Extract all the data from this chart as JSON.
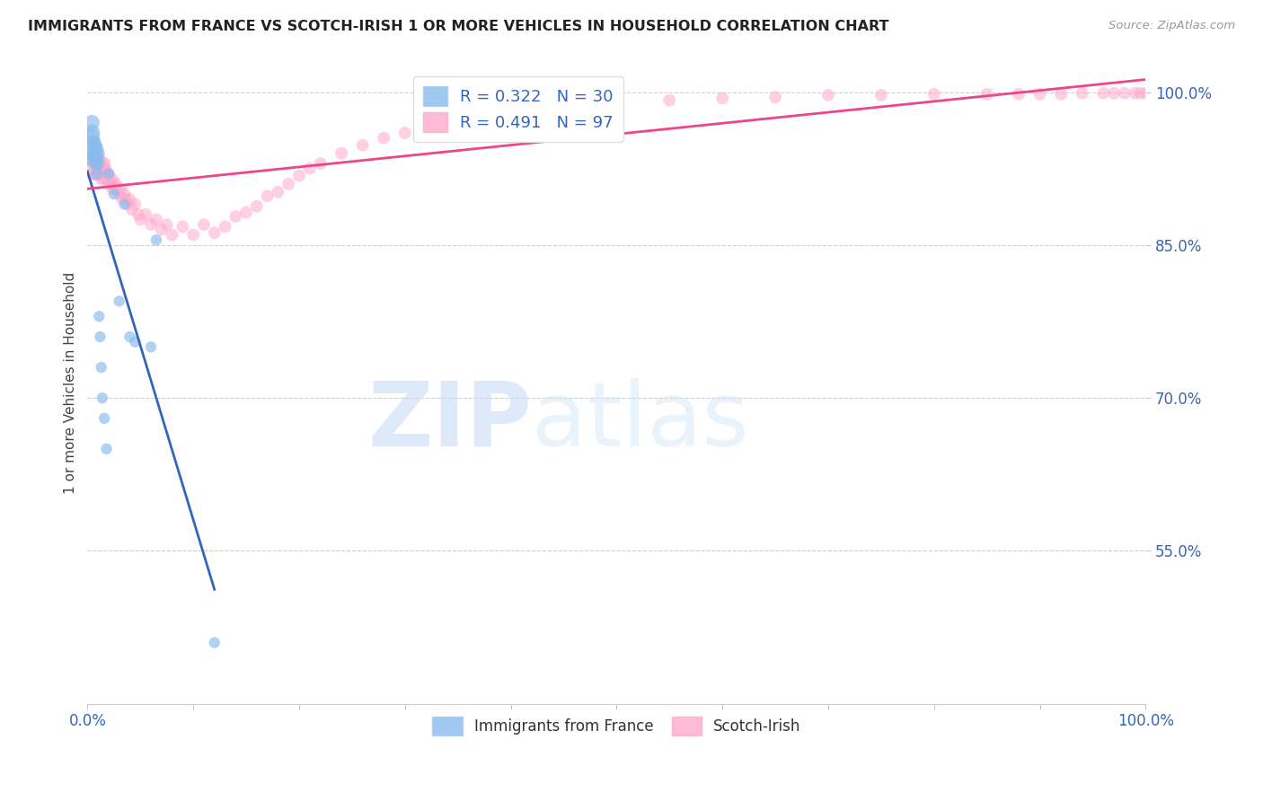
{
  "title": "IMMIGRANTS FROM FRANCE VS SCOTCH-IRISH 1 OR MORE VEHICLES IN HOUSEHOLD CORRELATION CHART",
  "source": "Source: ZipAtlas.com",
  "ylabel": "1 or more Vehicles in Household",
  "xlim": [
    0.0,
    1.0
  ],
  "ylim": [
    0.4,
    1.03
  ],
  "y_ticks": [
    0.55,
    0.7,
    0.85,
    1.0
  ],
  "y_tick_labels": [
    "55.0%",
    "70.0%",
    "85.0%",
    "100.0%"
  ],
  "x_tick_positions": [
    0.0,
    0.1,
    0.2,
    0.3,
    0.4,
    0.5,
    0.6,
    0.7,
    0.8,
    0.9,
    1.0
  ],
  "grid_color": "#d0d0d0",
  "background_color": "#ffffff",
  "blue_color": "#88bbee",
  "pink_color": "#ffaacc",
  "blue_line_color": "#3366bb",
  "pink_line_color": "#ee4488",
  "R_blue": 0.322,
  "N_blue": 30,
  "R_pink": 0.491,
  "N_pink": 97,
  "legend_label_blue": "Immigrants from France",
  "legend_label_pink": "Scotch-Irish",
  "watermark_zip": "ZIP",
  "watermark_atlas": "atlas",
  "blue_x": [
    0.003,
    0.004,
    0.004,
    0.005,
    0.005,
    0.006,
    0.006,
    0.007,
    0.007,
    0.008,
    0.008,
    0.009,
    0.009,
    0.01,
    0.01,
    0.011,
    0.012,
    0.013,
    0.014,
    0.016,
    0.018,
    0.02,
    0.025,
    0.03,
    0.035,
    0.04,
    0.045,
    0.06,
    0.065,
    0.12
  ],
  "blue_y": [
    0.955,
    0.96,
    0.97,
    0.94,
    0.95,
    0.935,
    0.94,
    0.945,
    0.95,
    0.935,
    0.93,
    0.945,
    0.92,
    0.94,
    0.93,
    0.78,
    0.76,
    0.73,
    0.7,
    0.68,
    0.65,
    0.92,
    0.9,
    0.795,
    0.89,
    0.76,
    0.755,
    0.75,
    0.855,
    0.46
  ],
  "blue_sizes": [
    220,
    180,
    160,
    120,
    140,
    200,
    160,
    140,
    120,
    130,
    110,
    110,
    100,
    110,
    100,
    80,
    80,
    80,
    80,
    80,
    80,
    80,
    80,
    80,
    80,
    80,
    80,
    80,
    80,
    80
  ],
  "pink_x": [
    0.003,
    0.004,
    0.005,
    0.005,
    0.006,
    0.007,
    0.007,
    0.008,
    0.008,
    0.009,
    0.009,
    0.01,
    0.01,
    0.01,
    0.011,
    0.011,
    0.012,
    0.012,
    0.013,
    0.013,
    0.014,
    0.014,
    0.015,
    0.015,
    0.016,
    0.016,
    0.017,
    0.018,
    0.018,
    0.019,
    0.02,
    0.021,
    0.022,
    0.023,
    0.024,
    0.025,
    0.026,
    0.027,
    0.028,
    0.03,
    0.032,
    0.033,
    0.035,
    0.036,
    0.038,
    0.04,
    0.042,
    0.045,
    0.048,
    0.05,
    0.055,
    0.06,
    0.065,
    0.07,
    0.075,
    0.08,
    0.09,
    0.1,
    0.11,
    0.12,
    0.13,
    0.14,
    0.15,
    0.16,
    0.17,
    0.18,
    0.19,
    0.2,
    0.21,
    0.22,
    0.24,
    0.26,
    0.28,
    0.3,
    0.32,
    0.35,
    0.38,
    0.4,
    0.45,
    0.5,
    0.55,
    0.6,
    0.65,
    0.7,
    0.75,
    0.8,
    0.85,
    0.88,
    0.9,
    0.92,
    0.94,
    0.96,
    0.97,
    0.98,
    0.99,
    0.995,
    1.0
  ],
  "pink_y": [
    0.93,
    0.935,
    0.92,
    0.94,
    0.93,
    0.935,
    0.92,
    0.93,
    0.94,
    0.92,
    0.935,
    0.93,
    0.92,
    0.94,
    0.925,
    0.935,
    0.92,
    0.93,
    0.925,
    0.915,
    0.92,
    0.93,
    0.915,
    0.925,
    0.92,
    0.93,
    0.925,
    0.915,
    0.92,
    0.91,
    0.92,
    0.915,
    0.91,
    0.915,
    0.905,
    0.91,
    0.905,
    0.91,
    0.905,
    0.9,
    0.905,
    0.895,
    0.9,
    0.895,
    0.89,
    0.895,
    0.885,
    0.89,
    0.88,
    0.875,
    0.88,
    0.87,
    0.875,
    0.865,
    0.87,
    0.86,
    0.868,
    0.86,
    0.87,
    0.862,
    0.868,
    0.878,
    0.882,
    0.888,
    0.898,
    0.902,
    0.91,
    0.918,
    0.925,
    0.93,
    0.94,
    0.948,
    0.955,
    0.96,
    0.965,
    0.972,
    0.978,
    0.98,
    0.985,
    0.99,
    0.992,
    0.994,
    0.995,
    0.997,
    0.997,
    0.998,
    0.998,
    0.998,
    0.998,
    0.998,
    0.999,
    0.999,
    0.999,
    0.999,
    0.999,
    0.999,
    0.999
  ],
  "pink_sizes": [
    120,
    100,
    120,
    100,
    120,
    100,
    110,
    110,
    100,
    110,
    100,
    120,
    100,
    110,
    100,
    110,
    120,
    100,
    100,
    110,
    100,
    110,
    100,
    110,
    100,
    110,
    100,
    100,
    110,
    100,
    100,
    100,
    100,
    100,
    100,
    100,
    100,
    100,
    100,
    100,
    100,
    100,
    100,
    100,
    100,
    100,
    100,
    100,
    100,
    100,
    100,
    100,
    100,
    100,
    100,
    100,
    100,
    100,
    100,
    100,
    100,
    100,
    100,
    100,
    100,
    100,
    100,
    100,
    100,
    100,
    100,
    100,
    100,
    100,
    100,
    100,
    100,
    100,
    100,
    100,
    100,
    100,
    100,
    100,
    100,
    100,
    100,
    100,
    100,
    100,
    100,
    100,
    100,
    100,
    100,
    100,
    100
  ]
}
